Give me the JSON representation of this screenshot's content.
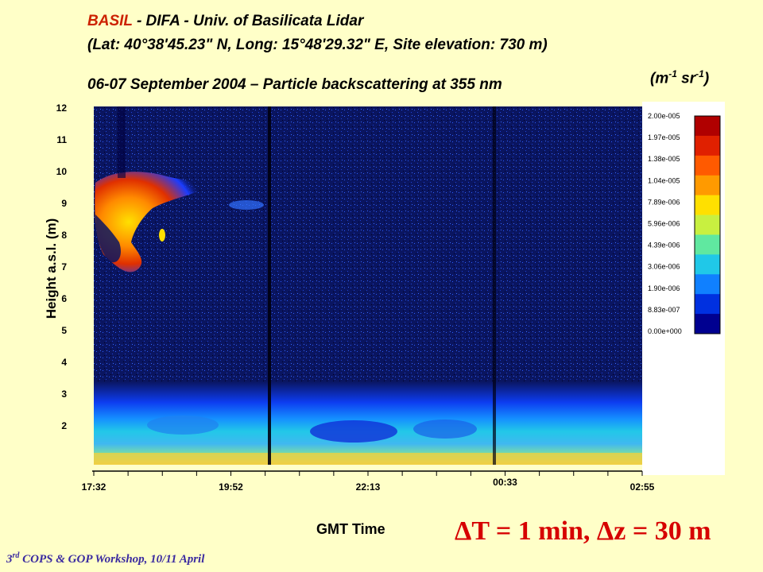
{
  "header": {
    "title_prefix": "BASIL",
    "title_rest": " - DIFA - Univ. of Basilicata Lidar",
    "location": "(Lat: 40°38'45.23\" N, Long: 15°48'29.32\" E, Site elevation: 730 m)",
    "subtitle": "06-07 September 2004 – Particle backscattering at 355 nm",
    "units_main": "(m",
    "units_exp1": "-1",
    "units_mid": " sr",
    "units_exp2": "-1",
    "units_close": ")"
  },
  "footer": {
    "resolution": "ΔT = 1 min, Δz = 30 m",
    "workshop_prefix": "3",
    "workshop_sup": "rd",
    "workshop_rest": " COPS & GOP Workshop, 10/11 April"
  },
  "chart_data": {
    "type": "heatmap",
    "title": "06-07 September 2004 – Particle backscattering at 355 nm",
    "xlabel": "GMT Time",
    "ylabel": "Height a.s.l. (m)",
    "x_ticks": [
      "17:32",
      "19:52",
      "22:13",
      "00:33",
      "02:55"
    ],
    "y_ticks": [
      "2",
      "3",
      "4",
      "5",
      "6",
      "7",
      "8",
      "9",
      "10",
      "11",
      "12"
    ],
    "colorbar_labels": [
      "2.00e-005",
      "1.97e-005",
      "1.38e-005",
      "1.04e-005",
      "7.89e-006",
      "5.96e-006",
      "4.39e-006",
      "3.06e-006",
      "1.90e-006",
      "8.83e-007",
      "0.00e+000"
    ],
    "colorbar_colors": [
      "#b00000",
      "#e02000",
      "#ff5a00",
      "#ff9a00",
      "#ffe000",
      "#c8f040",
      "#60e8a0",
      "#20c8e8",
      "#1080ff",
      "#0030e0",
      "#000090"
    ],
    "background_color": "#0a1560",
    "page_background": "#ffffc8"
  }
}
